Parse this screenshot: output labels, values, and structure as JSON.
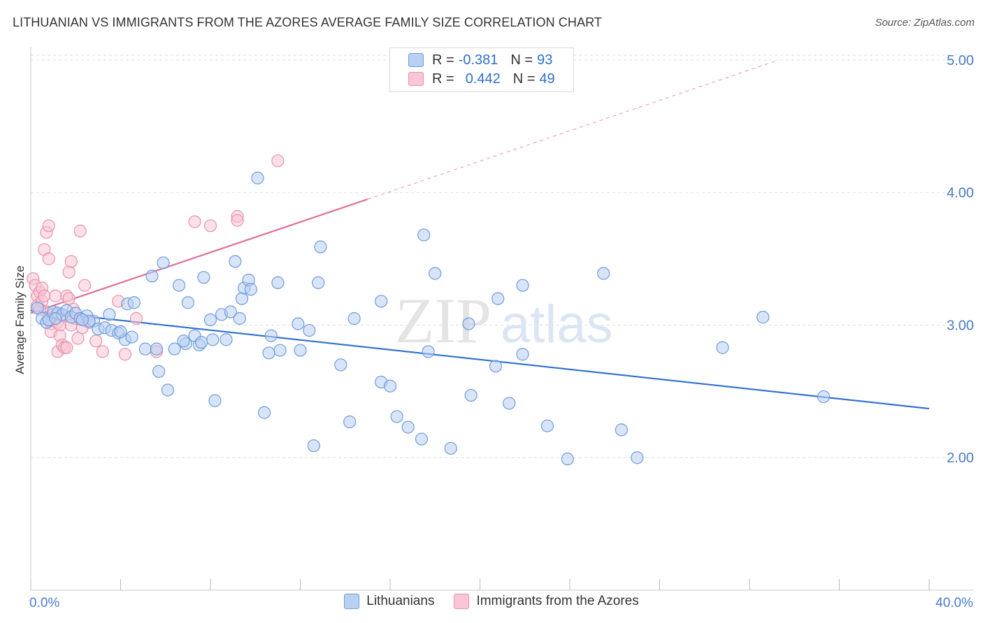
{
  "header": {
    "title": "LITHUANIAN VS IMMIGRANTS FROM THE AZORES AVERAGE FAMILY SIZE CORRELATION CHART",
    "source": "Source: ZipAtlas.com"
  },
  "watermark": {
    "zip": "ZIP",
    "atlas": "atlas"
  },
  "legend": {
    "rows": [
      {
        "r_label": "R =",
        "r_value": "-0.381",
        "n_label": "N =",
        "n_value": "93"
      },
      {
        "r_label": "R =",
        "r_value": "0.442",
        "n_label": "N =",
        "n_value": "49"
      }
    ]
  },
  "bottom_legend": {
    "series1": "Lithuanians",
    "series2": "Immigrants from the Azores"
  },
  "colors": {
    "blue_fill": "#b8d0f2",
    "blue_stroke": "#6f9bdc",
    "blue_line": "#2f6fd0",
    "pink_fill": "#f8c6d6",
    "pink_stroke": "#e991ad",
    "pink_line": "#e0709a",
    "tick_text": "#4a7cc9",
    "grid": "#dddddd"
  },
  "chart_data": {
    "type": "scatter",
    "title": "LITHUANIAN VS IMMIGRANTS FROM THE AZORES AVERAGE FAMILY SIZE CORRELATION CHART",
    "xlabel": "",
    "ylabel": "Average Family Size",
    "xlim": [
      0,
      40
    ],
    "ylim": [
      1,
      5.1
    ],
    "x_tick_labels": [
      "0.0%",
      "40.0%"
    ],
    "y_ticks": [
      2,
      3,
      4,
      5
    ],
    "y_tick_labels": [
      "2.00",
      "3.00",
      "4.00",
      "5.00"
    ],
    "grid": true,
    "legend": [
      "Lithuanians",
      "Immigrants from the Azores"
    ],
    "series": [
      {
        "name": "Lithuanians",
        "r": -0.381,
        "n": 93,
        "trend": {
          "x": [
            0,
            40
          ],
          "y": [
            3.11,
            2.37
          ]
        },
        "points": [
          [
            0.3,
            3.13
          ],
          [
            0.5,
            3.05
          ],
          [
            0.7,
            3.02
          ],
          [
            0.8,
            3.04
          ],
          [
            1.0,
            3.1
          ],
          [
            1.2,
            3.09
          ],
          [
            1.4,
            3.08
          ],
          [
            1.6,
            3.11
          ],
          [
            1.8,
            3.06
          ],
          [
            2.0,
            3.09
          ],
          [
            2.2,
            3.05
          ],
          [
            2.5,
            3.07
          ],
          [
            2.8,
            3.03
          ],
          [
            3.0,
            2.97
          ],
          [
            3.3,
            2.98
          ],
          [
            3.6,
            2.96
          ],
          [
            3.9,
            2.94
          ],
          [
            4.2,
            2.89
          ],
          [
            4.5,
            2.91
          ],
          [
            4.3,
            3.16
          ],
          [
            4.6,
            3.17
          ],
          [
            2.6,
            3.03
          ],
          [
            3.5,
            3.08
          ],
          [
            5.1,
            2.82
          ],
          [
            5.4,
            3.37
          ],
          [
            5.6,
            2.82
          ],
          [
            5.7,
            2.65
          ],
          [
            5.9,
            3.47
          ],
          [
            6.1,
            2.51
          ],
          [
            6.4,
            2.82
          ],
          [
            6.6,
            3.3
          ],
          [
            6.9,
            2.86
          ],
          [
            7.0,
            3.17
          ],
          [
            7.3,
            2.92
          ],
          [
            7.5,
            2.85
          ],
          [
            7.6,
            2.87
          ],
          [
            7.7,
            3.36
          ],
          [
            8.0,
            3.04
          ],
          [
            8.1,
            2.89
          ],
          [
            8.2,
            2.43
          ],
          [
            8.5,
            3.08
          ],
          [
            8.7,
            2.89
          ],
          [
            8.9,
            3.1
          ],
          [
            9.1,
            3.48
          ],
          [
            9.3,
            3.05
          ],
          [
            9.4,
            3.2
          ],
          [
            9.5,
            3.28
          ],
          [
            9.7,
            3.34
          ],
          [
            9.8,
            3.27
          ],
          [
            10.1,
            4.11
          ],
          [
            10.4,
            2.34
          ],
          [
            10.6,
            2.79
          ],
          [
            10.7,
            2.92
          ],
          [
            11.0,
            3.32
          ],
          [
            11.1,
            2.81
          ],
          [
            11.9,
            3.01
          ],
          [
            12.0,
            2.81
          ],
          [
            12.4,
            2.96
          ],
          [
            12.6,
            2.09
          ],
          [
            12.8,
            3.32
          ],
          [
            12.9,
            3.59
          ],
          [
            13.8,
            2.7
          ],
          [
            14.2,
            2.27
          ],
          [
            14.4,
            3.05
          ],
          [
            15.6,
            2.57
          ],
          [
            15.6,
            3.18
          ],
          [
            16.0,
            2.54
          ],
          [
            16.3,
            2.31
          ],
          [
            16.8,
            2.23
          ],
          [
            17.4,
            2.14
          ],
          [
            17.5,
            3.68
          ],
          [
            17.7,
            2.8
          ],
          [
            18.0,
            3.39
          ],
          [
            18.7,
            2.07
          ],
          [
            19.5,
            3.01
          ],
          [
            19.6,
            2.47
          ],
          [
            20.7,
            2.69
          ],
          [
            20.8,
            3.2
          ],
          [
            21.3,
            2.41
          ],
          [
            21.9,
            3.3
          ],
          [
            21.9,
            2.78
          ],
          [
            23.0,
            2.24
          ],
          [
            23.9,
            1.99
          ],
          [
            25.5,
            3.39
          ],
          [
            26.3,
            2.21
          ],
          [
            27.0,
            2.0
          ],
          [
            30.8,
            2.83
          ],
          [
            32.6,
            3.06
          ],
          [
            35.3,
            2.46
          ],
          [
            2.3,
            3.04
          ],
          [
            4.0,
            2.95
          ],
          [
            6.8,
            2.88
          ],
          [
            1.1,
            3.05
          ]
        ]
      },
      {
        "name": "Immigrants from the Azores",
        "r": 0.442,
        "n": 49,
        "trend": {
          "x": [
            0,
            15
          ],
          "y": [
            3.09,
            3.95
          ]
        },
        "trend_extension": {
          "x": [
            15,
            33.3
          ],
          "y": [
            3.95,
            5.0
          ]
        },
        "points": [
          [
            0.1,
            3.35
          ],
          [
            0.2,
            3.3
          ],
          [
            0.3,
            3.22
          ],
          [
            0.3,
            3.15
          ],
          [
            0.4,
            3.25
          ],
          [
            0.5,
            3.18
          ],
          [
            0.5,
            3.28
          ],
          [
            0.6,
            3.22
          ],
          [
            0.6,
            3.57
          ],
          [
            0.7,
            3.7
          ],
          [
            0.7,
            3.1
          ],
          [
            0.8,
            3.5
          ],
          [
            0.8,
            3.75
          ],
          [
            0.9,
            3.01
          ],
          [
            0.9,
            2.95
          ],
          [
            1.0,
            3.08
          ],
          [
            1.1,
            3.22
          ],
          [
            1.2,
            3.02
          ],
          [
            1.2,
            2.8
          ],
          [
            1.3,
            3.0
          ],
          [
            1.3,
            2.92
          ],
          [
            1.4,
            3.07
          ],
          [
            1.4,
            2.85
          ],
          [
            1.5,
            2.83
          ],
          [
            1.6,
            3.22
          ],
          [
            1.6,
            2.83
          ],
          [
            1.7,
            3.4
          ],
          [
            1.7,
            3.2
          ],
          [
            1.8,
            3.48
          ],
          [
            1.8,
            3.0
          ],
          [
            1.9,
            3.12
          ],
          [
            2.0,
            3.05
          ],
          [
            2.1,
            2.9
          ],
          [
            2.2,
            3.71
          ],
          [
            2.3,
            2.98
          ],
          [
            2.4,
            3.3
          ],
          [
            2.6,
            3.02
          ],
          [
            2.9,
            2.88
          ],
          [
            3.2,
            2.8
          ],
          [
            3.9,
            3.18
          ],
          [
            4.2,
            2.78
          ],
          [
            4.7,
            3.05
          ],
          [
            5.6,
            2.8
          ],
          [
            7.3,
            3.78
          ],
          [
            8.0,
            3.75
          ],
          [
            9.2,
            3.82
          ],
          [
            9.2,
            3.79
          ],
          [
            11.0,
            4.24
          ],
          [
            0.4,
            3.12
          ]
        ]
      }
    ]
  }
}
